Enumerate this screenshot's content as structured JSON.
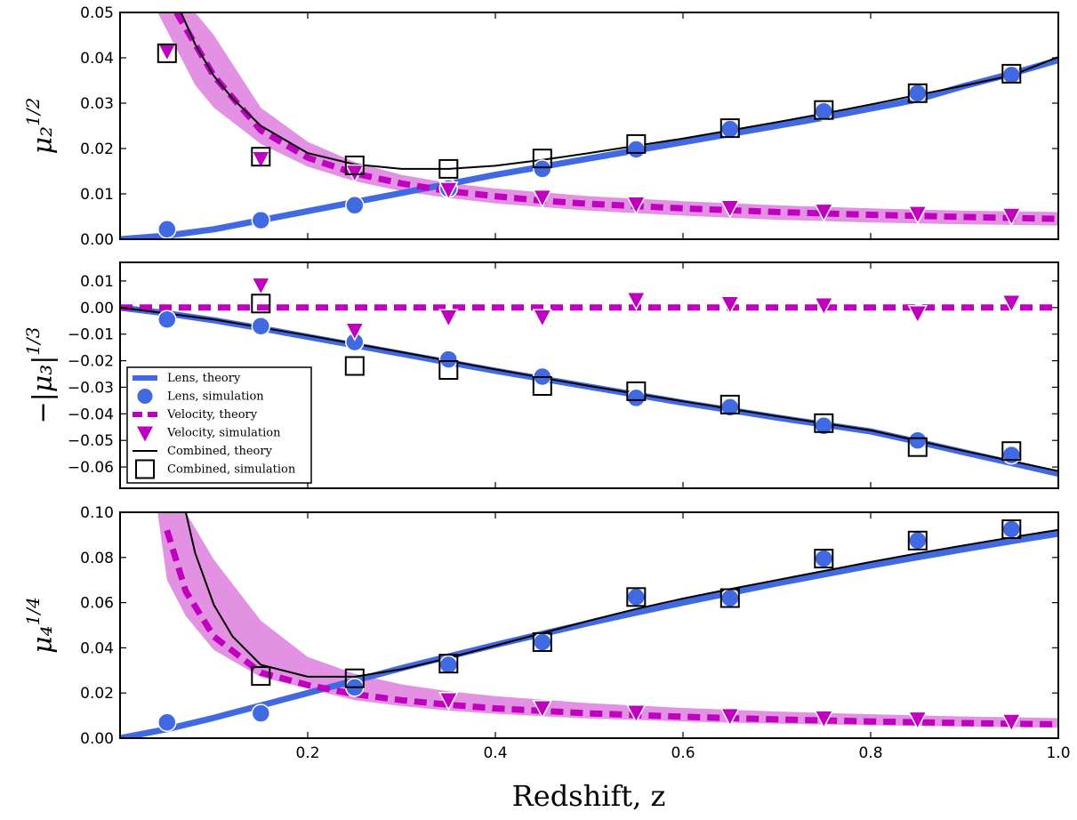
{
  "colors": {
    "lens": "#4169e1",
    "velocity": "#bf00bf",
    "band": "#e391e3",
    "combined": "#000000"
  },
  "xlabel": "Redshift,  z",
  "chart_data": [
    {
      "type": "line",
      "ylabel": "μ₂^(1/2)",
      "xlim": [
        0.0,
        1.0
      ],
      "ylim": [
        0.0,
        0.05
      ],
      "xticks": [
        0.2,
        0.4,
        0.6,
        0.8,
        1.0
      ],
      "yticks": [
        "0.00",
        "0.01",
        "0.02",
        "0.03",
        "0.04",
        "0.05"
      ],
      "series": [
        {
          "name": "Lens, theory",
          "kind": "line",
          "x": [
            0.0,
            0.05,
            0.1,
            0.15,
            0.2,
            0.25,
            0.3,
            0.35,
            0.4,
            0.45,
            0.5,
            0.55,
            0.6,
            0.65,
            0.7,
            0.75,
            0.8,
            0.85,
            0.9,
            0.95,
            1.0
          ],
          "y": [
            0.0,
            0.0008,
            0.0022,
            0.0042,
            0.0062,
            0.0082,
            0.0102,
            0.0122,
            0.0142,
            0.016,
            0.0178,
            0.0196,
            0.0214,
            0.0232,
            0.025,
            0.0268,
            0.0288,
            0.0308,
            0.0338,
            0.0365,
            0.0395
          ]
        },
        {
          "name": "Lens, simulation",
          "kind": "scatter",
          "x": [
            0.05,
            0.15,
            0.25,
            0.35,
            0.45,
            0.55,
            0.65,
            0.75,
            0.85,
            0.95
          ],
          "y": [
            0.0022,
            0.0042,
            0.0075,
            0.0112,
            0.0155,
            0.0198,
            0.0243,
            0.0282,
            0.0322,
            0.0362
          ]
        },
        {
          "name": "Velocity, theory",
          "kind": "dashed",
          "x": [
            0.06,
            0.08,
            0.1,
            0.15,
            0.2,
            0.25,
            0.3,
            0.35,
            0.4,
            0.45,
            0.5,
            0.6,
            0.7,
            0.8,
            0.9,
            1.0
          ],
          "y": [
            0.05,
            0.043,
            0.036,
            0.024,
            0.018,
            0.0145,
            0.0123,
            0.0106,
            0.0095,
            0.0085,
            0.0078,
            0.0068,
            0.006,
            0.0054,
            0.0049,
            0.0045
          ]
        },
        {
          "name": "Velocity band",
          "kind": "band",
          "x": [
            0.04,
            0.06,
            0.08,
            0.1,
            0.15,
            0.2,
            0.25,
            0.3,
            0.35,
            0.4,
            0.5,
            0.6,
            0.7,
            0.8,
            0.9,
            1.0
          ],
          "lower": [
            0.05,
            0.042,
            0.034,
            0.029,
            0.021,
            0.016,
            0.0128,
            0.0106,
            0.0091,
            0.0079,
            0.0063,
            0.0052,
            0.0043,
            0.0037,
            0.0033,
            0.003
          ],
          "upper": [
            0.05,
            0.05,
            0.05,
            0.045,
            0.029,
            0.0215,
            0.017,
            0.0142,
            0.0124,
            0.0112,
            0.0095,
            0.0084,
            0.0075,
            0.0068,
            0.0063,
            0.006
          ]
        },
        {
          "name": "Velocity, simulation",
          "kind": "triangles",
          "x": [
            0.05,
            0.15,
            0.25,
            0.35,
            0.45,
            0.55,
            0.65,
            0.75,
            0.85,
            0.95
          ],
          "y": [
            0.0415,
            0.0178,
            0.0148,
            0.011,
            0.0093,
            0.0078,
            0.007,
            0.0062,
            0.0057,
            0.0053
          ]
        },
        {
          "name": "Combined, theory",
          "kind": "line",
          "x": [
            0.065,
            0.08,
            0.1,
            0.12,
            0.15,
            0.2,
            0.25,
            0.3,
            0.35,
            0.4,
            0.45,
            0.5,
            0.55,
            0.6,
            0.65,
            0.7,
            0.75,
            0.8,
            0.85,
            0.9,
            0.95,
            1.0
          ],
          "y": [
            0.05,
            0.043,
            0.036,
            0.031,
            0.025,
            0.019,
            0.0165,
            0.0155,
            0.0155,
            0.0162,
            0.0175,
            0.019,
            0.0206,
            0.0222,
            0.024,
            0.0258,
            0.0277,
            0.0297,
            0.0318,
            0.0339,
            0.0361,
            0.0402
          ]
        },
        {
          "name": "Combined, simulation",
          "kind": "squares",
          "x": [
            0.05,
            0.15,
            0.25,
            0.35,
            0.45,
            0.55,
            0.65,
            0.75,
            0.85,
            0.95
          ],
          "y": [
            0.041,
            0.0182,
            0.0163,
            0.0155,
            0.0178,
            0.021,
            0.0245,
            0.0285,
            0.0322,
            0.0365
          ]
        }
      ]
    },
    {
      "type": "line",
      "ylabel": "−|μ₃|^(1/3)",
      "xlim": [
        0.0,
        1.0
      ],
      "ylim": [
        -0.068,
        0.017
      ],
      "xticks": [
        0.2,
        0.4,
        0.6,
        0.8,
        1.0
      ],
      "yticks": [
        "0.01",
        "0.00",
        "−0.01",
        "−0.02",
        "−0.03",
        "−0.04",
        "−0.05",
        "−0.06"
      ],
      "series": [
        {
          "name": "Lens, theory",
          "kind": "line",
          "x": [
            0.0,
            0.05,
            0.1,
            0.15,
            0.2,
            0.25,
            0.3,
            0.35,
            0.4,
            0.45,
            0.5,
            0.55,
            0.6,
            0.65,
            0.7,
            0.75,
            0.8,
            0.85,
            0.9,
            0.95,
            1.0
          ],
          "y": [
            0.0,
            -0.0022,
            -0.0048,
            -0.0078,
            -0.011,
            -0.0142,
            -0.0174,
            -0.0206,
            -0.0238,
            -0.0268,
            -0.0298,
            -0.0328,
            -0.0358,
            -0.0386,
            -0.0414,
            -0.044,
            -0.0466,
            -0.0505,
            -0.0545,
            -0.0585,
            -0.0625
          ]
        },
        {
          "name": "Lens, simulation",
          "kind": "scatter",
          "x": [
            0.05,
            0.15,
            0.25,
            0.35,
            0.45,
            0.55,
            0.65,
            0.75,
            0.85,
            0.95
          ],
          "y": [
            -0.0045,
            -0.007,
            -0.013,
            -0.0195,
            -0.026,
            -0.034,
            -0.0375,
            -0.0445,
            -0.05,
            -0.0555
          ]
        },
        {
          "name": "Velocity, theory",
          "kind": "dashed",
          "x": [
            0.0,
            1.0
          ],
          "y": [
            0.0,
            0.0
          ]
        },
        {
          "name": "Velocity, simulation",
          "kind": "triangles",
          "x": [
            0.15,
            0.25,
            0.35,
            0.45,
            0.55,
            0.65,
            0.75,
            0.85,
            0.95
          ],
          "y": [
            0.0085,
            -0.0085,
            -0.0035,
            -0.0035,
            0.003,
            0.0015,
            0.001,
            -0.002,
            0.002
          ]
        },
        {
          "name": "Combined, theory",
          "kind": "line",
          "x": [
            0.0,
            0.1,
            0.2,
            0.3,
            0.4,
            0.5,
            0.6,
            0.7,
            0.8,
            0.9,
            1.0
          ],
          "y": [
            0.0,
            -0.0045,
            -0.0105,
            -0.0168,
            -0.0233,
            -0.0295,
            -0.0353,
            -0.0409,
            -0.0462,
            -0.054,
            -0.0615
          ]
        },
        {
          "name": "Combined, simulation",
          "kind": "squares",
          "x": [
            0.15,
            0.25,
            0.35,
            0.45,
            0.55,
            0.65,
            0.75,
            0.85,
            0.95
          ],
          "y": [
            0.0015,
            -0.022,
            -0.0235,
            -0.0295,
            -0.0315,
            -0.0365,
            -0.0435,
            -0.0525,
            -0.054
          ]
        }
      ],
      "legend": {
        "placement": "lower-left",
        "entries": [
          "Lens, theory",
          "Lens, simulation",
          "Velocity, theory",
          "Velocity, simulation",
          "Combined, theory",
          "Combined, simulation"
        ]
      }
    },
    {
      "type": "line",
      "ylabel": "μ₄^(1/4)",
      "xlim": [
        0.0,
        1.0
      ],
      "ylim": [
        0.0,
        0.1
      ],
      "xticks": [
        0.2,
        0.4,
        0.6,
        0.8,
        1.0
      ],
      "yticks": [
        "0.00",
        "0.02",
        "0.04",
        "0.06",
        "0.08",
        "0.10"
      ],
      "series": [
        {
          "name": "Lens, theory",
          "kind": "line",
          "x": [
            0.0,
            0.05,
            0.1,
            0.15,
            0.2,
            0.25,
            0.3,
            0.35,
            0.4,
            0.45,
            0.5,
            0.55,
            0.6,
            0.65,
            0.7,
            0.75,
            0.8,
            0.85,
            0.9,
            0.95,
            1.0
          ],
          "y": [
            0.0,
            0.004,
            0.009,
            0.0145,
            0.02,
            0.0255,
            0.031,
            0.0362,
            0.0413,
            0.0462,
            0.051,
            0.0556,
            0.06,
            0.0643,
            0.0685,
            0.0725,
            0.0764,
            0.0801,
            0.0837,
            0.0872,
            0.0905
          ]
        },
        {
          "name": "Lens, simulation",
          "kind": "scatter",
          "x": [
            0.05,
            0.15,
            0.25,
            0.35,
            0.45,
            0.55,
            0.65,
            0.75,
            0.85,
            0.95
          ],
          "y": [
            0.007,
            0.011,
            0.0225,
            0.0325,
            0.0425,
            0.0625,
            0.062,
            0.0795,
            0.0875,
            0.0925
          ]
        },
        {
          "name": "Velocity, theory",
          "kind": "dashed",
          "x": [
            0.05,
            0.07,
            0.1,
            0.15,
            0.2,
            0.25,
            0.3,
            0.35,
            0.4,
            0.5,
            0.6,
            0.7,
            0.8,
            0.9,
            1.0
          ],
          "y": [
            0.092,
            0.065,
            0.045,
            0.029,
            0.0235,
            0.0195,
            0.0168,
            0.0148,
            0.0132,
            0.011,
            0.0095,
            0.0083,
            0.0074,
            0.0067,
            0.0061
          ]
        },
        {
          "name": "Velocity band",
          "kind": "band",
          "x": [
            0.04,
            0.05,
            0.07,
            0.1,
            0.15,
            0.2,
            0.25,
            0.3,
            0.35,
            0.4,
            0.5,
            0.6,
            0.7,
            0.8,
            0.9,
            1.0
          ],
          "lower": [
            0.1,
            0.07,
            0.054,
            0.039,
            0.027,
            0.022,
            0.0168,
            0.0142,
            0.0122,
            0.0108,
            0.0087,
            0.0074,
            0.0064,
            0.0057,
            0.0051,
            0.0047
          ],
          "upper": [
            0.1,
            0.1,
            0.1,
            0.079,
            0.052,
            0.036,
            0.0285,
            0.0238,
            0.0208,
            0.0186,
            0.0155,
            0.0134,
            0.0118,
            0.0106,
            0.0096,
            0.0089
          ]
        },
        {
          "name": "Velocity, simulation",
          "kind": "triangles",
          "x": [
            0.35,
            0.45,
            0.55,
            0.65,
            0.75,
            0.85,
            0.95
          ],
          "y": [
            0.017,
            0.0135,
            0.0115,
            0.01,
            0.009,
            0.0085,
            0.0075
          ]
        },
        {
          "name": "Combined, theory",
          "kind": "line",
          "x": [
            0.07,
            0.08,
            0.1,
            0.12,
            0.15,
            0.2,
            0.25,
            0.3,
            0.35,
            0.4,
            0.45,
            0.5,
            0.55,
            0.6,
            0.65,
            0.7,
            0.75,
            0.8,
            0.85,
            0.9,
            0.95,
            1.0
          ],
          "y": [
            0.1,
            0.082,
            0.059,
            0.045,
            0.0325,
            0.0272,
            0.0272,
            0.0305,
            0.0355,
            0.041,
            0.0465,
            0.052,
            0.0572,
            0.0618,
            0.066,
            0.07,
            0.074,
            0.078,
            0.0818,
            0.0854,
            0.0889,
            0.0922
          ]
        },
        {
          "name": "Combined, simulation",
          "kind": "squares",
          "x": [
            0.15,
            0.25,
            0.35,
            0.45,
            0.55,
            0.65,
            0.75,
            0.85,
            0.95
          ],
          "y": [
            0.0275,
            0.0265,
            0.033,
            0.0425,
            0.0625,
            0.062,
            0.0795,
            0.0875,
            0.0925
          ]
        }
      ]
    }
  ]
}
